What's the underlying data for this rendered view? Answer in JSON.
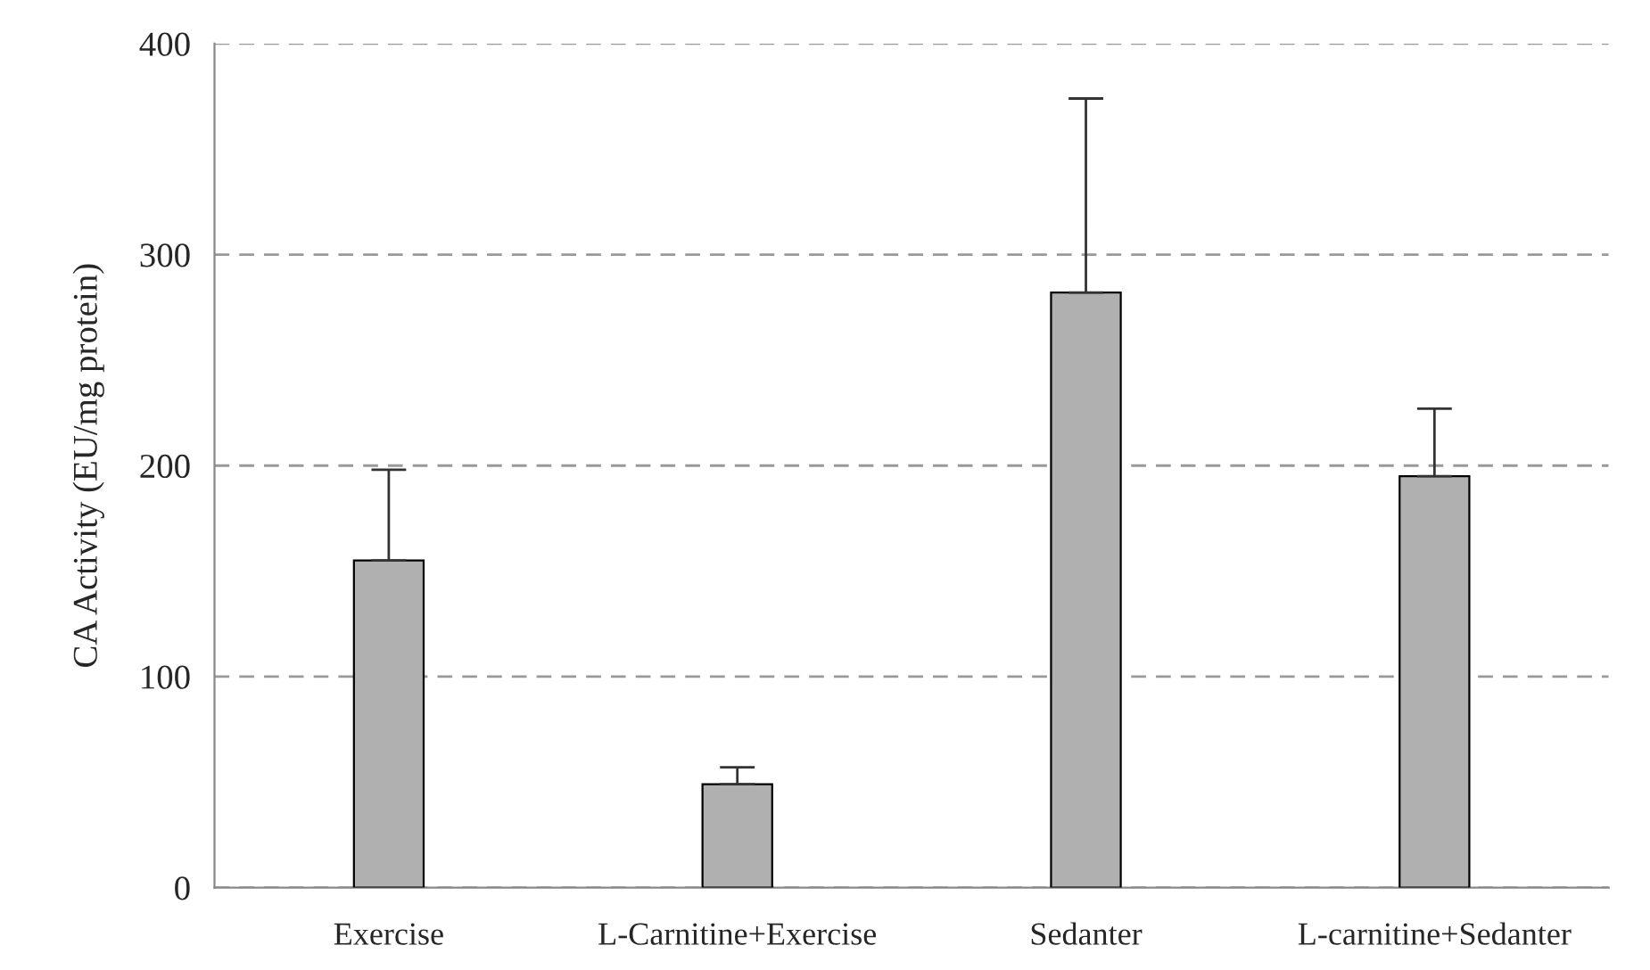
{
  "chart_data": {
    "type": "bar",
    "ylabel": "CA Activity (EU/mg protein)",
    "categories": [
      "Exercise",
      "L-Carnitine+Exercise",
      "Sedanter",
      "L-carnitine+Sedanter"
    ],
    "values": [
      155,
      49,
      282,
      195
    ],
    "errors": [
      [
        155,
        198
      ],
      [
        49,
        57
      ],
      [
        282,
        374
      ],
      [
        195,
        227
      ]
    ],
    "color": "#b0b0b0",
    "ylim": [
      0,
      400
    ],
    "yticks": [
      0,
      100,
      200,
      300,
      400
    ],
    "grid": "y"
  }
}
